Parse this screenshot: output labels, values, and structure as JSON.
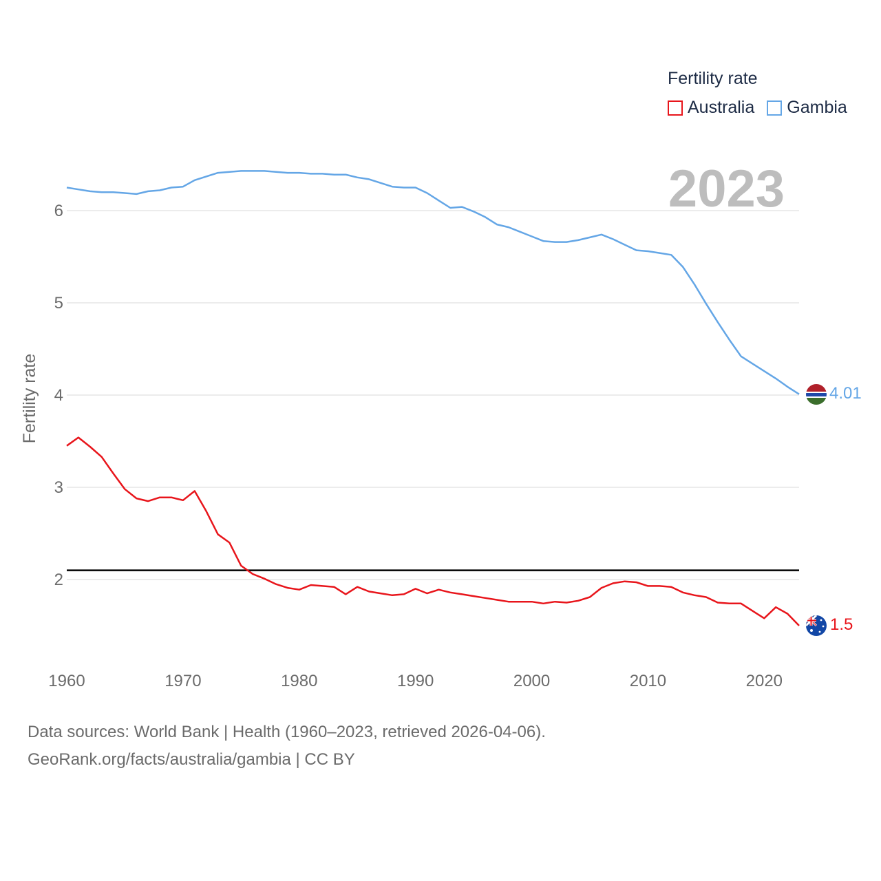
{
  "legend": {
    "title": "Fertility rate",
    "items": [
      {
        "label": "Australia",
        "color": "#e8151b"
      },
      {
        "label": "Gambia",
        "color": "#64a6e6"
      }
    ]
  },
  "year_label": "2023",
  "footer": {
    "line1": "Data sources: World Bank | Health (1960–2023, retrieved 2026-04-06).",
    "line2": "GeoRank.org/facts/australia/gambia | CC BY"
  },
  "chart_data": {
    "type": "line",
    "title": "",
    "xlabel": "",
    "ylabel": "Fertility rate",
    "xlim": [
      1960,
      2023
    ],
    "ylim": [
      1.2,
      6.75
    ],
    "xticks": [
      1960,
      1970,
      1980,
      1990,
      2000,
      2010,
      2020
    ],
    "yticks": [
      2,
      3,
      4,
      5,
      6
    ],
    "reference_line": {
      "y": 2.1,
      "color": "#000000"
    },
    "x": [
      1960,
      1961,
      1962,
      1963,
      1964,
      1965,
      1966,
      1967,
      1968,
      1969,
      1970,
      1971,
      1972,
      1973,
      1974,
      1975,
      1976,
      1977,
      1978,
      1979,
      1980,
      1981,
      1982,
      1983,
      1984,
      1985,
      1986,
      1987,
      1988,
      1989,
      1990,
      1991,
      1992,
      1993,
      1994,
      1995,
      1996,
      1997,
      1998,
      1999,
      2000,
      2001,
      2002,
      2003,
      2004,
      2005,
      2006,
      2007,
      2008,
      2009,
      2010,
      2011,
      2012,
      2013,
      2014,
      2015,
      2016,
      2017,
      2018,
      2019,
      2020,
      2021,
      2022,
      2023
    ],
    "series": [
      {
        "name": "Australia",
        "color": "#e8151b",
        "end_label": "1.5",
        "values": [
          3.45,
          3.54,
          3.44,
          3.33,
          3.15,
          2.98,
          2.88,
          2.85,
          2.89,
          2.89,
          2.86,
          2.96,
          2.74,
          2.49,
          2.4,
          2.15,
          2.06,
          2.01,
          1.95,
          1.91,
          1.89,
          1.94,
          1.93,
          1.92,
          1.84,
          1.92,
          1.87,
          1.85,
          1.83,
          1.84,
          1.9,
          1.85,
          1.89,
          1.86,
          1.84,
          1.82,
          1.8,
          1.78,
          1.76,
          1.76,
          1.76,
          1.74,
          1.76,
          1.75,
          1.77,
          1.81,
          1.91,
          1.96,
          1.98,
          1.97,
          1.93,
          1.93,
          1.92,
          1.86,
          1.83,
          1.81,
          1.75,
          1.74,
          1.74,
          1.66,
          1.58,
          1.7,
          1.63,
          1.5
        ]
      },
      {
        "name": "Gambia",
        "color": "#64a6e6",
        "end_label": "4.01",
        "values": [
          6.25,
          6.23,
          6.21,
          6.2,
          6.2,
          6.19,
          6.18,
          6.21,
          6.22,
          6.25,
          6.26,
          6.33,
          6.37,
          6.41,
          6.42,
          6.43,
          6.43,
          6.43,
          6.42,
          6.41,
          6.41,
          6.4,
          6.4,
          6.39,
          6.39,
          6.36,
          6.34,
          6.3,
          6.26,
          6.25,
          6.25,
          6.19,
          6.11,
          6.03,
          6.04,
          5.99,
          5.93,
          5.85,
          5.82,
          5.77,
          5.72,
          5.67,
          5.66,
          5.66,
          5.68,
          5.71,
          5.74,
          5.69,
          5.63,
          5.57,
          5.56,
          5.54,
          5.52,
          5.39,
          5.2,
          4.99,
          4.79,
          4.6,
          4.42,
          4.34,
          4.26,
          4.18,
          4.09,
          4.01
        ]
      }
    ]
  }
}
